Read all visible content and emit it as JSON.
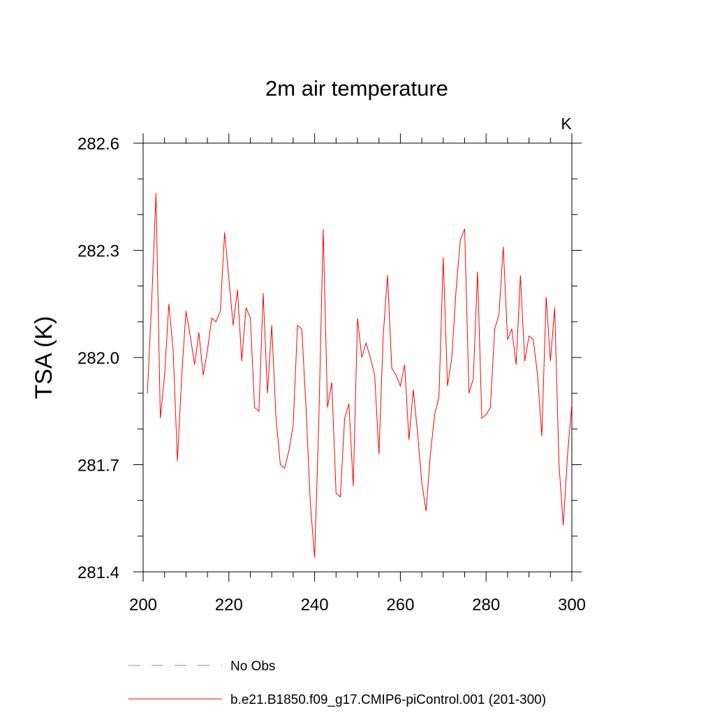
{
  "chart_data": {
    "type": "line",
    "title": "2m air temperature",
    "units": "K",
    "xlabel": "",
    "ylabel": "TSA  (K)",
    "xlim": [
      200,
      300
    ],
    "ylim": [
      281.4,
      282.6
    ],
    "x_ticks": [
      "200",
      "220",
      "240",
      "260",
      "280",
      "300"
    ],
    "x_tick_values": [
      200,
      220,
      240,
      260,
      280,
      300
    ],
    "y_ticks": [
      "281.4",
      "281.7",
      "282.0",
      "282.3",
      "282.6"
    ],
    "y_tick_values": [
      281.4,
      281.7,
      282.0,
      282.3,
      282.6
    ],
    "series": [
      {
        "name": "b.e21.B1850.f09_g17.CMIP6-piControl.001 (201-300)",
        "color": "#ff0000",
        "style": "solid",
        "x": [
          201,
          202,
          203,
          204,
          205,
          206,
          207,
          208,
          209,
          210,
          211,
          212,
          213,
          214,
          215,
          216,
          217,
          218,
          219,
          220,
          221,
          222,
          223,
          224,
          225,
          226,
          227,
          228,
          229,
          230,
          231,
          232,
          233,
          234,
          235,
          236,
          237,
          238,
          239,
          240,
          241,
          242,
          243,
          244,
          245,
          246,
          247,
          248,
          249,
          250,
          251,
          252,
          253,
          254,
          255,
          256,
          257,
          258,
          259,
          260,
          261,
          262,
          263,
          264,
          265,
          266,
          267,
          268,
          269,
          270,
          271,
          272,
          273,
          274,
          275,
          276,
          277,
          278,
          279,
          280,
          281,
          282,
          283,
          284,
          285,
          286,
          287,
          288,
          289,
          290,
          291,
          292,
          293,
          294,
          295,
          296,
          297,
          298,
          299,
          300
        ],
        "values": [
          281.9,
          282.16,
          282.46,
          281.83,
          281.95,
          282.15,
          282.02,
          281.71,
          281.95,
          282.13,
          282.06,
          281.98,
          282.07,
          281.95,
          282.02,
          282.11,
          282.1,
          282.13,
          282.35,
          282.22,
          282.09,
          282.19,
          281.99,
          282.14,
          282.11,
          281.86,
          281.85,
          282.18,
          281.9,
          282.09,
          281.83,
          281.7,
          281.69,
          281.74,
          281.81,
          282.09,
          282.08,
          281.86,
          281.59,
          281.44,
          281.83,
          282.36,
          281.86,
          281.93,
          281.62,
          281.61,
          281.83,
          281.87,
          281.64,
          282.11,
          282.0,
          282.04,
          282.0,
          281.95,
          281.73,
          282.06,
          282.23,
          281.97,
          281.95,
          281.92,
          281.98,
          281.77,
          281.91,
          281.79,
          281.65,
          281.57,
          281.73,
          281.84,
          281.89,
          282.28,
          281.92,
          282.0,
          282.19,
          282.33,
          282.36,
          281.9,
          281.94,
          282.24,
          281.83,
          281.84,
          281.86,
          282.08,
          282.12,
          282.31,
          282.05,
          282.08,
          281.98,
          282.23,
          281.99,
          282.06,
          282.05,
          281.95,
          281.78,
          282.17,
          281.99,
          282.14,
          281.7,
          281.53,
          281.73,
          281.87
        ]
      },
      {
        "name": "No Obs",
        "color": "#8f7ff0",
        "style": "dashed",
        "x": [],
        "values": []
      }
    ],
    "legend_position": "bottom-left",
    "grid": false
  }
}
